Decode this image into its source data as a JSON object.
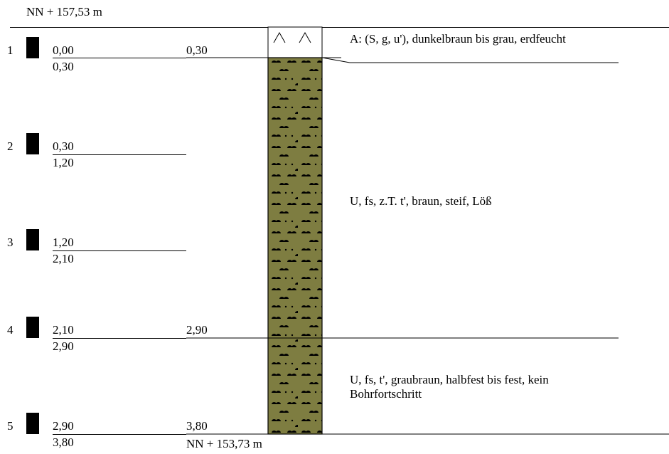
{
  "profile": {
    "top_elevation": "NN + 157,53 m",
    "bottom_elevation": "NN + 153,73 m"
  },
  "samples": [
    {
      "number": "1",
      "from": "0,00",
      "to": "0,30"
    },
    {
      "number": "2",
      "from": "0,30",
      "to": "1,20"
    },
    {
      "number": "3",
      "from": "1,20",
      "to": "2,10"
    },
    {
      "number": "4",
      "from": "2,10",
      "to": "2,90"
    },
    {
      "number": "5",
      "from": "2,90",
      "to": "3,80"
    }
  ],
  "layers": [
    {
      "base_depth": "0,30",
      "description": "A: (S, g, u'), dunkelbraun bis grau, erdfeucht",
      "hatch": "fill-symbol"
    },
    {
      "base_depth": "",
      "description": "U, fs, z.T. t', braun, steif, Löß",
      "hatch": "silt"
    },
    {
      "base_depth": "2,90",
      "description": "U, fs, t', graubraun, halbfest bis fest, kein Bohrfortschritt",
      "hatch": "silt"
    },
    {
      "base_depth": "3,80",
      "description": "",
      "hatch": ""
    }
  ],
  "colors": {
    "silt_fill": "#7e7d41",
    "ink": "#000000"
  }
}
